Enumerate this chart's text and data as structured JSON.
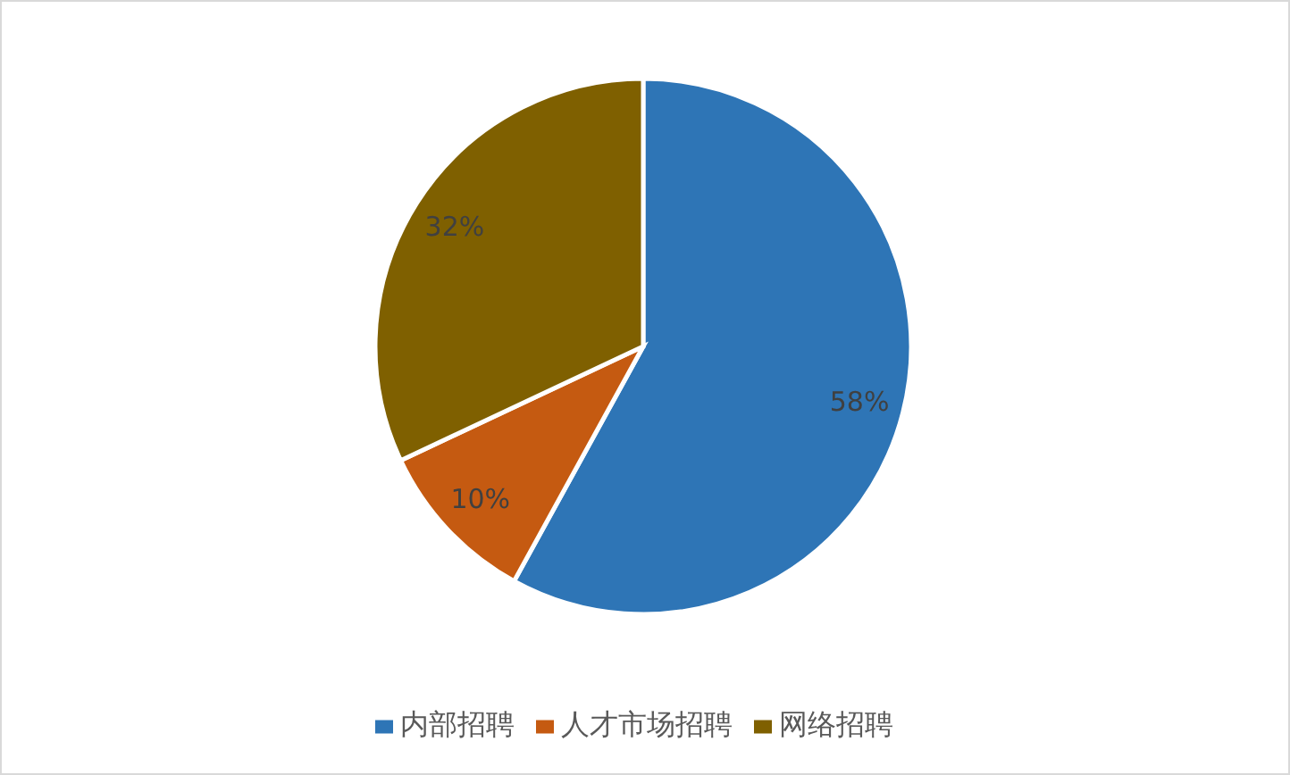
{
  "chart_data": {
    "type": "pie",
    "categories": [
      "内部招聘",
      "人才市场招聘",
      "网络招聘"
    ],
    "values": [
      58,
      10,
      32
    ],
    "colors": [
      "#2e75b6",
      "#c55a11",
      "#7f6000"
    ],
    "value_labels": [
      "58%",
      "10%",
      "32%"
    ],
    "legend": "bottom"
  }
}
